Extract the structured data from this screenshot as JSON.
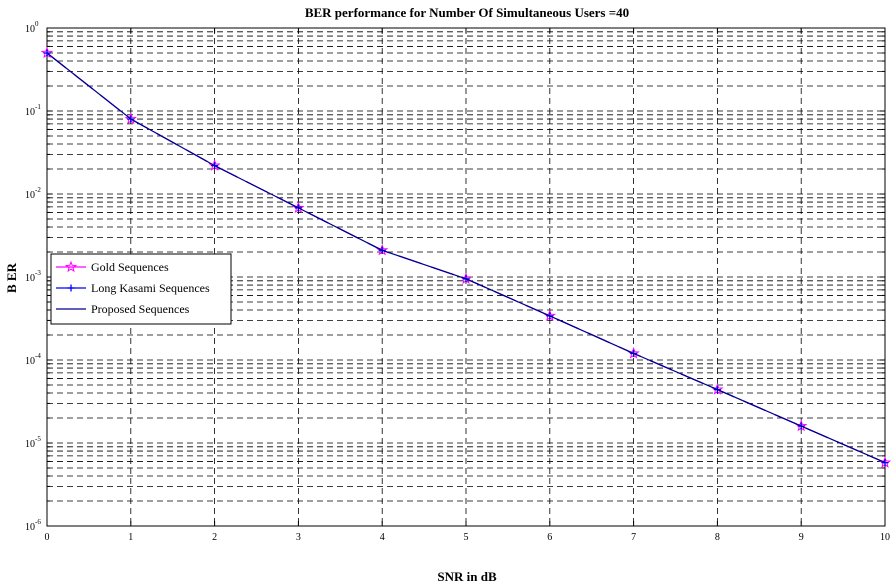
{
  "chart_data": {
    "type": "line",
    "title": "BER performance for Number Of Simultaneous Users =40",
    "xlabel": "SNR in dB",
    "ylabel": "B ER",
    "x": [
      0,
      1,
      2,
      3,
      4,
      5,
      6,
      7,
      8,
      9,
      10
    ],
    "xlim": [
      0,
      10
    ],
    "ylim": [
      1e-06,
      1
    ],
    "yscale": "log",
    "xticks": [
      "0",
      "1",
      "2",
      "3",
      "4",
      "5",
      "6",
      "7",
      "8",
      "9",
      "10"
    ],
    "yticks": [
      {
        "base": "10",
        "exp": "0"
      },
      {
        "base": "10",
        "exp": "-1"
      },
      {
        "base": "10",
        "exp": "-2"
      },
      {
        "base": "10",
        "exp": "-3"
      },
      {
        "base": "10",
        "exp": "-4"
      },
      {
        "base": "10",
        "exp": "-5"
      },
      {
        "base": "10",
        "exp": "-6"
      }
    ],
    "grid": true,
    "legend_position": "left",
    "series": [
      {
        "name": "Gold Sequences",
        "color": "#ff00ff",
        "marker": "star",
        "line": "dashed",
        "values": [
          0.5,
          0.08,
          0.022,
          0.0068,
          0.0021,
          0.00095,
          0.00034,
          0.00012,
          4.4e-05,
          1.6e-05,
          5.8e-06
        ]
      },
      {
        "name": "Long Kasami Sequences",
        "color": "#0000ff",
        "marker": "plus",
        "line": "dashed",
        "values": [
          0.5,
          0.08,
          0.022,
          0.0068,
          0.0021,
          0.00095,
          0.00034,
          0.00012,
          4.4e-05,
          1.6e-05,
          5.8e-06
        ]
      },
      {
        "name": "Proposed Sequences",
        "color": "#00008b",
        "marker": "none",
        "line": "solid",
        "values": [
          0.5,
          0.08,
          0.022,
          0.0068,
          0.0021,
          0.00095,
          0.00034,
          0.00012,
          4.4e-05,
          1.6e-05,
          5.8e-06
        ]
      }
    ]
  }
}
